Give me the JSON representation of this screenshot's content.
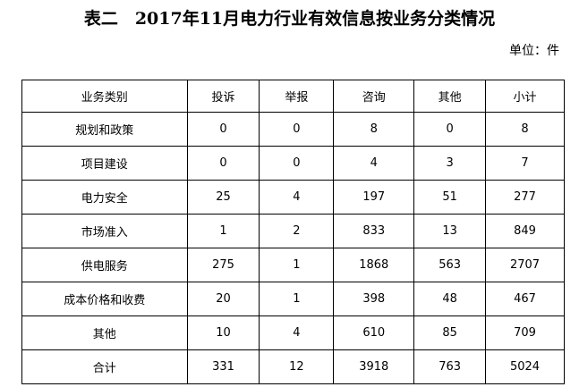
{
  "title": "表二　2017年11月电力行业有效信息按业务分类情况",
  "unit": "单位：件",
  "table": {
    "headers": [
      "业务类别",
      "投诉",
      "举报",
      "咨询",
      "其他",
      "小计"
    ],
    "rows": [
      [
        "规划和政策",
        "0",
        "0",
        "8",
        "0",
        "8"
      ],
      [
        "项目建设",
        "0",
        "0",
        "4",
        "3",
        "7"
      ],
      [
        "电力安全",
        "25",
        "4",
        "197",
        "51",
        "277"
      ],
      [
        "市场准入",
        "1",
        "2",
        "833",
        "13",
        "849"
      ],
      [
        "供电服务",
        "275",
        "1",
        "1868",
        "563",
        "2707"
      ],
      [
        "成本价格和收费",
        "20",
        "1",
        "398",
        "48",
        "467"
      ],
      [
        "其他",
        "10",
        "4",
        "610",
        "85",
        "709"
      ],
      [
        "合计",
        "331",
        "12",
        "3918",
        "763",
        "5024"
      ]
    ]
  }
}
